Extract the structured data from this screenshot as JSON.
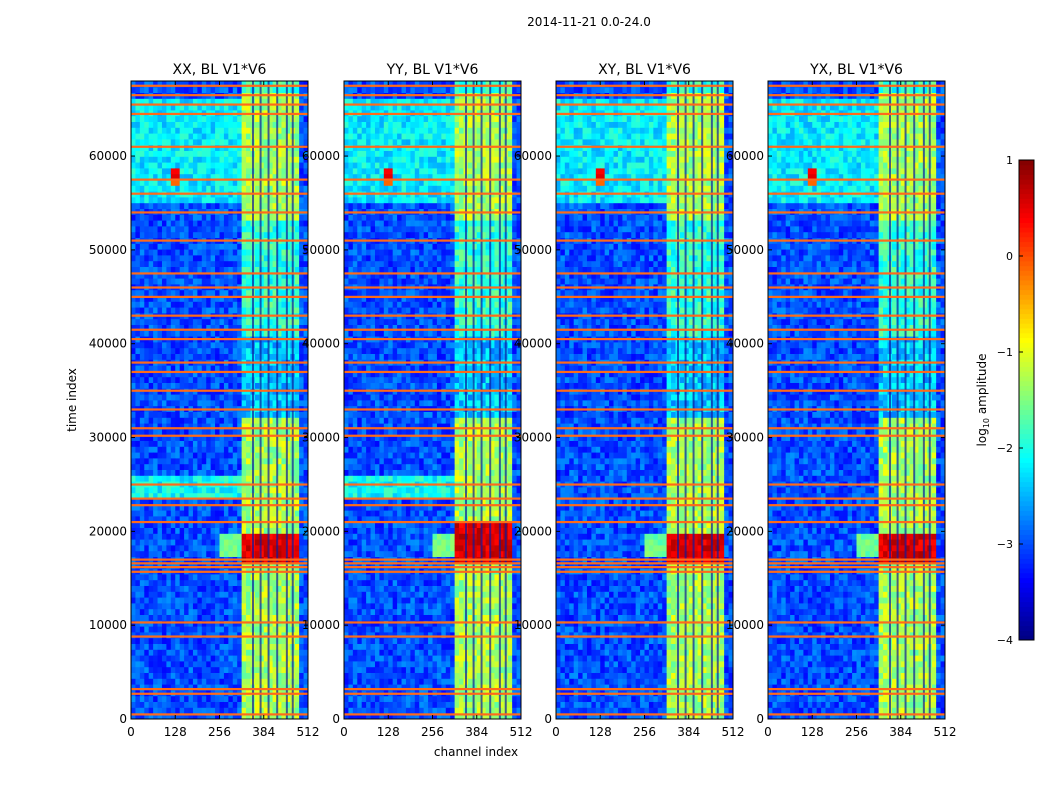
{
  "figure": {
    "suptitle": "2014-11-21 0.0-24.0",
    "xlabel": "channel index",
    "ylabel": "time index"
  },
  "colorbar": {
    "label": "log",
    "label_sub": "10",
    "label_suffix": " amplitude",
    "ticks": [
      1,
      0,
      -1,
      -2,
      -3,
      -4
    ],
    "tick_labels": [
      "1",
      "0",
      "−1",
      "−2",
      "−3",
      "−4"
    ],
    "range": [
      -4,
      1
    ],
    "colormap": "jet"
  },
  "chart_data": [
    {
      "type": "heatmap",
      "title": "XX, BL V1*V6",
      "xlabel": "",
      "ylabel": "time index",
      "xlim": [
        0,
        512
      ],
      "ylim": [
        0,
        68000
      ],
      "xticks": [
        0,
        128,
        256,
        384,
        512
      ],
      "xtick_labels": [
        "0",
        "128",
        "256",
        "384",
        "512"
      ],
      "yticks": [
        0,
        10000,
        20000,
        30000,
        40000,
        50000,
        60000
      ],
      "ytick_labels": [
        "0",
        "10000",
        "20000",
        "30000",
        "40000",
        "50000",
        "60000"
      ],
      "rfi_channel_band": [
        325,
        480
      ],
      "strong_bursts": [
        [
          17000,
          20000
        ],
        [
          58000,
          59500
        ]
      ],
      "flagged_rows": [
        500,
        2700,
        3200,
        8800,
        10300,
        15700,
        16200,
        16600,
        17000,
        21000,
        22800,
        23500,
        25000,
        30200,
        31000,
        33000,
        35000,
        37000,
        38000,
        40500,
        41500,
        43000,
        45000,
        46000,
        47500,
        51000,
        54000,
        56000,
        57500,
        61000,
        64500,
        65500,
        66500,
        67500
      ]
    },
    {
      "type": "heatmap",
      "title": "YY, BL V1*V6",
      "xlabel": "channel index",
      "ylabel": "",
      "xlim": [
        0,
        512
      ],
      "ylim": [
        0,
        68000
      ],
      "xticks": [
        0,
        128,
        256,
        384,
        512
      ],
      "xtick_labels": [
        "0",
        "128",
        "256",
        "384",
        "512"
      ],
      "yticks": [
        0,
        10000,
        20000,
        30000,
        40000,
        50000,
        60000
      ],
      "ytick_labels": [
        "0",
        "10000",
        "20000",
        "30000",
        "40000",
        "50000",
        "60000"
      ],
      "rfi_channel_band": [
        325,
        480
      ],
      "strong_bursts": [
        [
          17000,
          21000
        ],
        [
          58000,
          59500
        ]
      ],
      "flagged_rows": [
        500,
        2700,
        3200,
        8800,
        10300,
        15700,
        16200,
        16600,
        17000,
        21000,
        22800,
        23500,
        25000,
        30200,
        31000,
        33000,
        35000,
        37000,
        38000,
        40500,
        41500,
        43000,
        45000,
        46000,
        47500,
        51000,
        54000,
        56000,
        57500,
        61000,
        64500,
        65500,
        66500,
        67500
      ]
    },
    {
      "type": "heatmap",
      "title": "XY, BL V1*V6",
      "xlabel": "",
      "ylabel": "",
      "xlim": [
        0,
        512
      ],
      "ylim": [
        0,
        68000
      ],
      "xticks": [
        0,
        128,
        256,
        384,
        512
      ],
      "xtick_labels": [
        "0",
        "128",
        "256",
        "384",
        "512"
      ],
      "yticks": [
        0,
        10000,
        20000,
        30000,
        40000,
        50000,
        60000
      ],
      "ytick_labels": [
        "0",
        "10000",
        "20000",
        "30000",
        "40000",
        "50000",
        "60000"
      ],
      "rfi_channel_band": [
        325,
        480
      ],
      "strong_bursts": [
        [
          17000,
          20000
        ],
        [
          58000,
          59500
        ]
      ],
      "flagged_rows": [
        500,
        2700,
        3200,
        8800,
        10300,
        15700,
        16200,
        16600,
        17000,
        21000,
        22800,
        23500,
        25000,
        30200,
        31000,
        33000,
        35000,
        37000,
        38000,
        40500,
        41500,
        43000,
        45000,
        46000,
        47500,
        51000,
        54000,
        56000,
        57500,
        61000,
        64500,
        65500,
        66500,
        67500
      ]
    },
    {
      "type": "heatmap",
      "title": "YX, BL V1*V6",
      "xlabel": "",
      "ylabel": "",
      "xlim": [
        0,
        512
      ],
      "ylim": [
        0,
        68000
      ],
      "xticks": [
        0,
        128,
        256,
        384,
        512
      ],
      "xtick_labels": [
        "0",
        "128",
        "256",
        "384",
        "512"
      ],
      "yticks": [
        0,
        10000,
        20000,
        30000,
        40000,
        50000,
        60000
      ],
      "ytick_labels": [
        "0",
        "10000",
        "20000",
        "30000",
        "40000",
        "50000",
        "60000"
      ],
      "rfi_channel_band": [
        325,
        480
      ],
      "strong_bursts": [
        [
          17000,
          20000
        ],
        [
          58000,
          59500
        ]
      ],
      "flagged_rows": [
        500,
        2700,
        3200,
        8800,
        10300,
        15700,
        16200,
        16600,
        17000,
        21000,
        22800,
        23500,
        25000,
        30200,
        31000,
        33000,
        35000,
        37000,
        38000,
        40500,
        41500,
        43000,
        45000,
        46000,
        47500,
        51000,
        54000,
        56000,
        57500,
        61000,
        64500,
        65500,
        66500,
        67500
      ]
    }
  ]
}
